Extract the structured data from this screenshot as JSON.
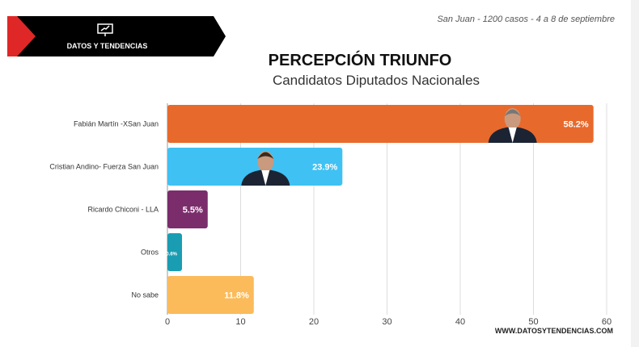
{
  "header": {
    "brand": "DATOS Y TENDENCIAS",
    "brand_icon": "presentation-chart-icon",
    "meta": "San Juan - 1200 casos - 4 a 8 de septiembre"
  },
  "footer": {
    "website": "WWW.DATOSYTENDENCIAS.COM"
  },
  "chart_data": {
    "type": "bar",
    "orientation": "horizontal",
    "title": "PERCEPCIÓN TRIUNFO",
    "subtitle": "Candidatos Diputados Nacionales",
    "categories": [
      "Fabián Martín -XSan Juan",
      "Cristian Andino- Fuerza San Juan",
      "Ricardo Chiconi - LLA",
      "Otros",
      "No sabe"
    ],
    "values": [
      58.2,
      23.9,
      5.5,
      0.6,
      11.8
    ],
    "labels": [
      "58.2%",
      "23.9%",
      "5.5%",
      "0.6%",
      "11.8%"
    ],
    "colors": [
      "#e8692c",
      "#3fc1f3",
      "#7b2d6b",
      "#1a9db3",
      "#fbbb5a"
    ],
    "xlim": [
      0,
      60
    ],
    "xticks": [
      "0",
      "10",
      "20",
      "30",
      "40",
      "50",
      "60"
    ],
    "grid": true,
    "xlabel": "",
    "ylabel": ""
  }
}
